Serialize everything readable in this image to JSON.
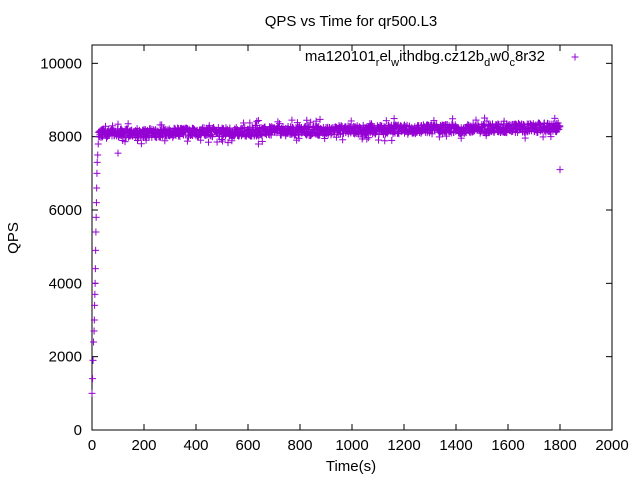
{
  "chart_data": {
    "type": "scatter",
    "title": "QPS vs Time for qr500.L3",
    "xlabel": "Time(s)",
    "ylabel": "QPS",
    "xlim": [
      0,
      2000
    ],
    "ylim": [
      0,
      10500
    ],
    "xticks": [
      0,
      200,
      400,
      600,
      800,
      1000,
      1200,
      1400,
      1600,
      1800,
      2000
    ],
    "yticks": [
      0,
      2000,
      4000,
      6000,
      8000,
      10000
    ],
    "grid": false,
    "legend_position": "top-right",
    "series": [
      {
        "name": "ma120101_rel_withdbg.cz12b_dw0_c8r32",
        "marker": "+",
        "color": "#9400d3",
        "points": [
          [
            0,
            1000
          ],
          [
            2,
            1400
          ],
          [
            4,
            1900
          ],
          [
            6,
            2400
          ],
          [
            8,
            2700
          ],
          [
            9,
            3000
          ],
          [
            10,
            3400
          ],
          [
            11,
            3700
          ],
          [
            12,
            4000
          ],
          [
            13,
            4400
          ],
          [
            14,
            4900
          ],
          [
            15,
            5400
          ],
          [
            16,
            5800
          ],
          [
            17,
            6200
          ],
          [
            18,
            6600
          ],
          [
            19,
            7000
          ],
          [
            20,
            7300
          ],
          [
            22,
            7500
          ],
          [
            24,
            7800
          ],
          [
            26,
            8000
          ],
          [
            30,
            8050
          ],
          [
            40,
            8100
          ],
          [
            50,
            8120
          ],
          [
            60,
            8150
          ],
          [
            70,
            8130
          ],
          [
            80,
            8140
          ],
          [
            90,
            8150
          ],
          [
            100,
            7550
          ],
          [
            110,
            8200
          ],
          [
            150,
            8150
          ],
          [
            200,
            8200
          ],
          [
            250,
            8150
          ],
          [
            300,
            8150
          ],
          [
            350,
            8200
          ],
          [
            400,
            8150
          ],
          [
            450,
            8200
          ],
          [
            500,
            8150
          ],
          [
            550,
            8200
          ],
          [
            600,
            8200
          ],
          [
            640,
            7800
          ],
          [
            650,
            8250
          ],
          [
            700,
            8250
          ],
          [
            750,
            8200
          ],
          [
            800,
            8250
          ],
          [
            850,
            8250
          ],
          [
            900,
            8250
          ],
          [
            950,
            8300
          ],
          [
            1000,
            8250
          ],
          [
            1050,
            8250
          ],
          [
            1100,
            8250
          ],
          [
            1150,
            8200
          ],
          [
            1200,
            8250
          ],
          [
            1250,
            8250
          ],
          [
            1300,
            8300
          ],
          [
            1350,
            8250
          ],
          [
            1400,
            8250
          ],
          [
            1450,
            8300
          ],
          [
            1500,
            8250
          ],
          [
            1550,
            8250
          ],
          [
            1600,
            8250
          ],
          [
            1650,
            8300
          ],
          [
            1700,
            8250
          ],
          [
            1750,
            8300
          ],
          [
            1780,
            8500
          ],
          [
            1790,
            8300
          ],
          [
            1800,
            7100
          ]
        ],
        "band": {
          "x_start": 25,
          "x_end": 1800,
          "note": "dense steady cluster around 8000–8400"
        }
      }
    ]
  }
}
